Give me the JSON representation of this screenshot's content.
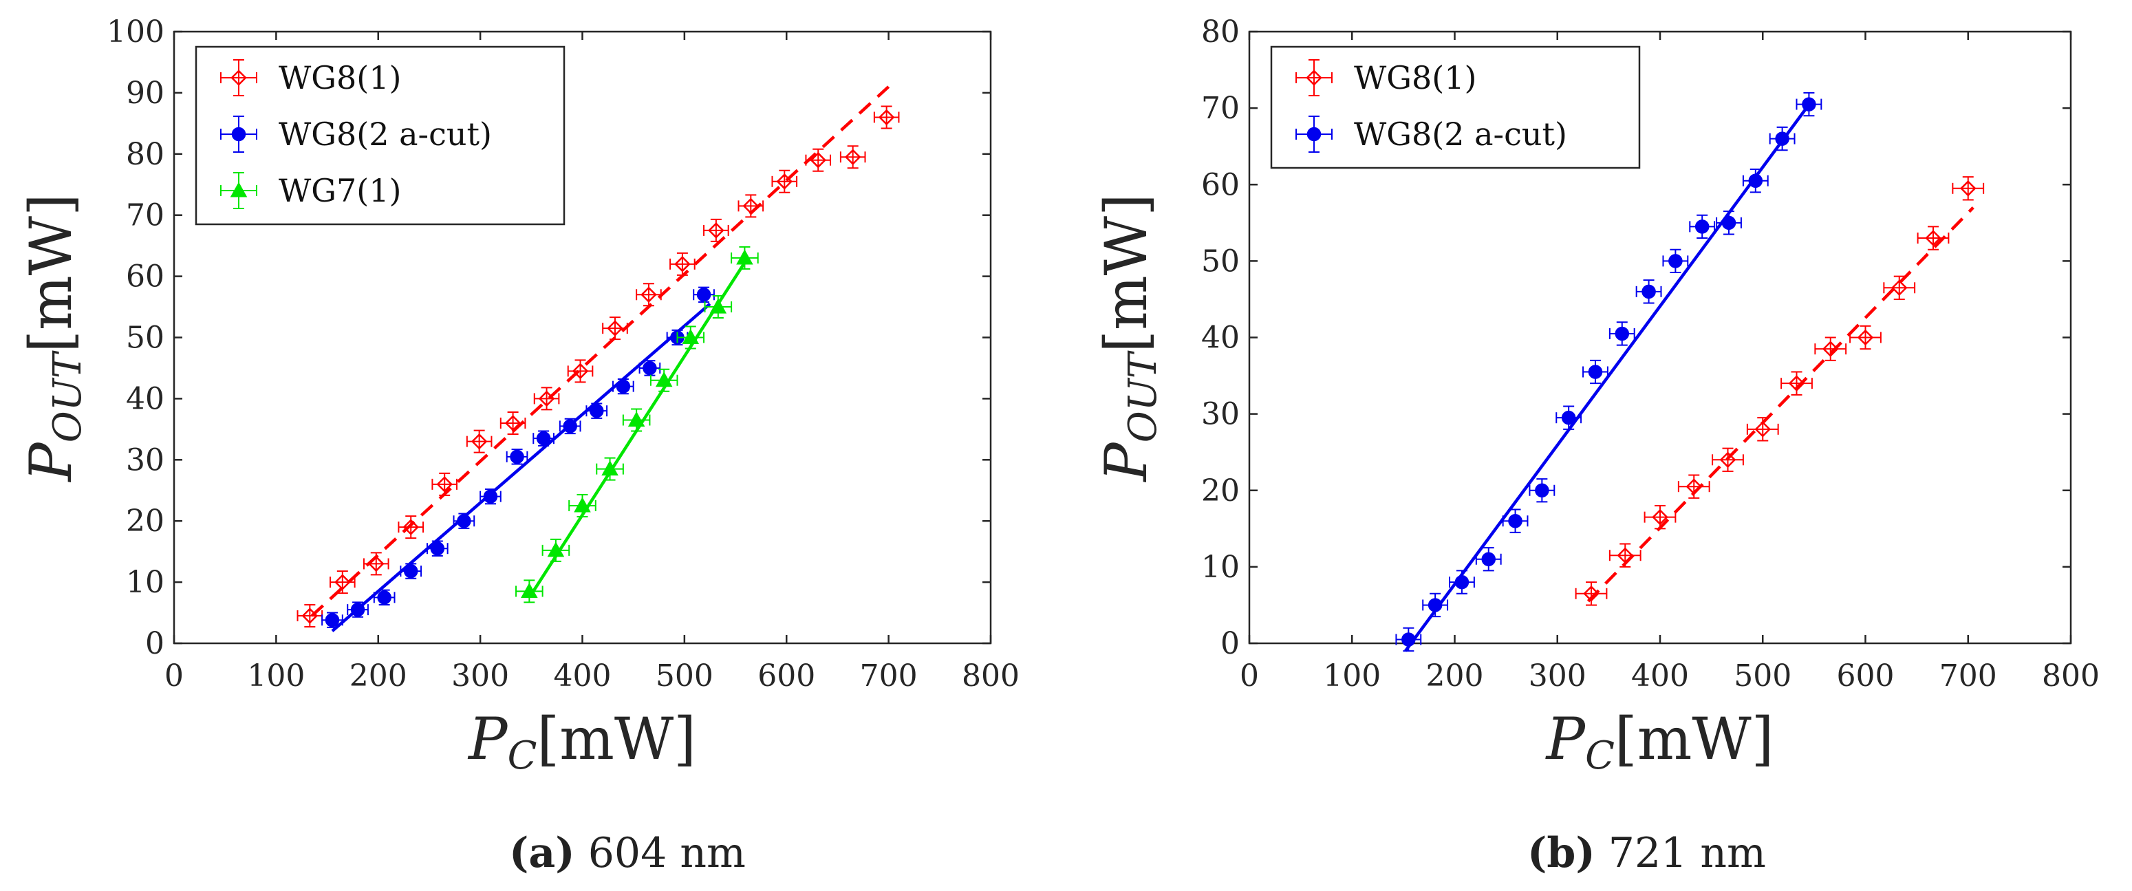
{
  "colors": {
    "red": "#ff0000",
    "blue": "#0000ee",
    "green": "#00e600",
    "axis": "#262626"
  },
  "panels": [
    {
      "caption_letter": "(a)",
      "caption_text": " 604 nm"
    },
    {
      "caption_letter": "(b)",
      "caption_text": " 721 nm"
    }
  ],
  "chart_data": [
    {
      "type": "scatter",
      "title": "",
      "xlabel": "P_C [mW]",
      "ylabel": "P_OUT [mW]",
      "xlim": [
        0,
        800
      ],
      "ylim": [
        0,
        100
      ],
      "xticks": [
        "0",
        "100",
        "200",
        "300",
        "400",
        "500",
        "600",
        "700",
        "800"
      ],
      "yticks": [
        "0",
        "10",
        "20",
        "30",
        "40",
        "50",
        "60",
        "70",
        "80",
        "90",
        "100"
      ],
      "legend_position": "top-left",
      "series": [
        {
          "name": "WG8(1)",
          "marker": "diamond-open",
          "color": "#ff0000",
          "fit": {
            "style": "dashed",
            "x": [
              135,
              700
            ],
            "y": [
              4.5,
              91
            ]
          },
          "x": [
            133,
            165,
            198,
            232,
            265,
            299,
            332,
            365,
            398,
            432,
            465,
            498,
            531,
            565,
            598,
            631,
            665,
            698
          ],
          "y": [
            4.5,
            10,
            13,
            19,
            26,
            33,
            36,
            40,
            44.5,
            51.5,
            57,
            62,
            67.5,
            71.5,
            75.5,
            79,
            79.5,
            86
          ],
          "xerr": 12,
          "yerr": 1.8
        },
        {
          "name": "WG8(2 a-cut)",
          "marker": "circle-filled",
          "color": "#0000ee",
          "fit": {
            "style": "solid",
            "x": [
              155,
              525
            ],
            "y": [
              2,
              55.5
            ]
          },
          "x": [
            155,
            180,
            206,
            232,
            258,
            284,
            310,
            336,
            362,
            388,
            414,
            440,
            466,
            493,
            519
          ],
          "y": [
            3.8,
            5.5,
            7.5,
            11.8,
            15.5,
            20,
            24,
            30.5,
            33.5,
            35.5,
            38,
            42,
            45,
            50,
            57
          ],
          "xerr": 10,
          "yerr": 1.2
        },
        {
          "name": "WG7(1)",
          "marker": "triangle-filled",
          "color": "#00e600",
          "fit": {
            "style": "solid",
            "x": [
              350,
              560
            ],
            "y": [
              8,
              62.5
            ]
          },
          "x": [
            348,
            374,
            400,
            427,
            453,
            480,
            506,
            533,
            559
          ],
          "y": [
            8.5,
            15.2,
            22.5,
            28.5,
            36.5,
            43,
            50,
            55,
            63
          ],
          "xerr": 13,
          "yerr": 1.8
        }
      ]
    },
    {
      "type": "scatter",
      "title": "",
      "xlabel": "P_C [mW]",
      "ylabel": "P_OUT [mW]",
      "xlim": [
        0,
        800
      ],
      "ylim": [
        0,
        80
      ],
      "xticks": [
        "0",
        "100",
        "200",
        "300",
        "400",
        "500",
        "600",
        "700",
        "800"
      ],
      "yticks": [
        "0",
        "10",
        "20",
        "30",
        "40",
        "50",
        "60",
        "70",
        "80"
      ],
      "legend_position": "top-left",
      "series": [
        {
          "name": "WG8(1)",
          "marker": "diamond-open",
          "color": "#ff0000",
          "fit": {
            "style": "dashed",
            "x": [
              330,
              705
            ],
            "y": [
              5.5,
              57
            ]
          },
          "x": [
            333,
            366,
            400,
            433,
            466,
            500,
            533,
            566,
            600,
            633,
            666,
            700
          ],
          "y": [
            6.5,
            11.5,
            16.5,
            20.5,
            24,
            28,
            34,
            38.5,
            40,
            46.5,
            53,
            59.5
          ],
          "xerr": 15,
          "yerr": 1.5
        },
        {
          "name": "WG8(2 a-cut)",
          "marker": "circle-filled",
          "color": "#0000ee",
          "fit": {
            "style": "solid",
            "x": [
              152,
              548
            ],
            "y": [
              -1,
              71
            ]
          },
          "x": [
            155,
            181,
            207,
            233,
            259,
            285,
            311,
            337,
            363,
            389,
            415,
            441,
            467,
            493,
            519,
            545
          ],
          "y": [
            0.5,
            5,
            8,
            11,
            16,
            20,
            29.5,
            35.5,
            40.5,
            46,
            50,
            54.5,
            55,
            60.5,
            66,
            70.5
          ],
          "xerr": 12,
          "yerr": 1.5
        }
      ]
    }
  ]
}
